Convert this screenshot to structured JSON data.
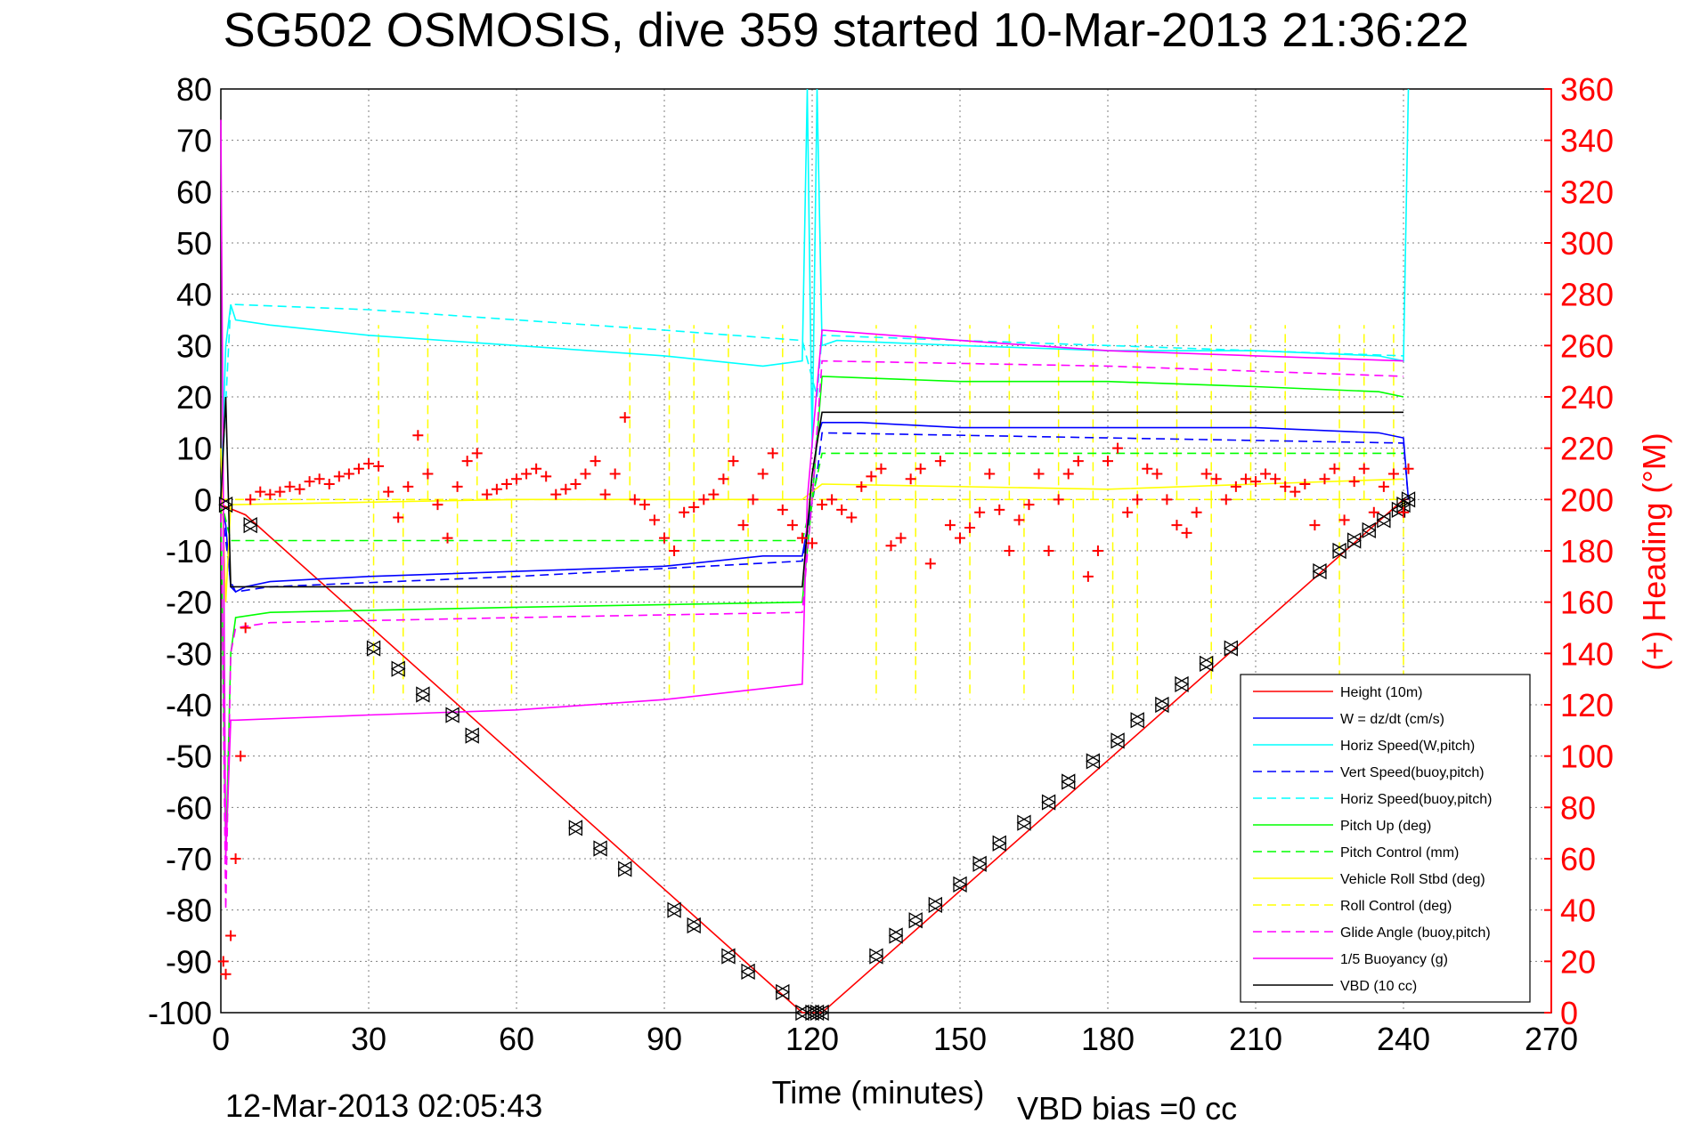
{
  "chart_data": {
    "type": "line",
    "title": "SG502 OSMOSIS, dive 359 started 10-Mar-2013 21:36:22",
    "xlabel": "Time (minutes)",
    "ylabel_right": "(+) Heading (°M)",
    "footer_left": "12-Mar-2013 02:05:43",
    "footer_right": "VBD bias =0 cc",
    "xlim": [
      0,
      270
    ],
    "ylim": [
      -100,
      80
    ],
    "ylim_right": [
      0,
      360
    ],
    "x_ticks": [
      "0",
      "30",
      "60",
      "90",
      "120",
      "150",
      "180",
      "210",
      "240",
      "270"
    ],
    "y_ticks": [
      "80",
      "70",
      "60",
      "50",
      "40",
      "30",
      "20",
      "10",
      "0",
      "-10",
      "-20",
      "-30",
      "-40",
      "-50",
      "-60",
      "-70",
      "-80",
      "-90",
      "-100"
    ],
    "y_ticks_right": [
      "360",
      "340",
      "320",
      "300",
      "280",
      "260",
      "240",
      "220",
      "200",
      "180",
      "160",
      "140",
      "120",
      "100",
      "80",
      "60",
      "40",
      "20",
      "0"
    ],
    "grid": true,
    "legend_position": "bottom-right",
    "series": [
      {
        "name": "Height (10m)",
        "color": "#ff0000",
        "dash": "solid",
        "x": [
          0,
          5,
          118,
          120,
          122,
          240,
          241
        ],
        "y": [
          -1,
          -3,
          -100,
          -100,
          -100,
          0,
          0
        ]
      },
      {
        "name": "W = dz/dt (cm/s)",
        "color": "#0000ff",
        "dash": "solid",
        "x": [
          0,
          1,
          2,
          3,
          5,
          10,
          30,
          60,
          90,
          110,
          118,
          120,
          121,
          122,
          130,
          150,
          180,
          210,
          235,
          240,
          241
        ],
        "y": [
          0,
          -5,
          -17,
          -18,
          -17,
          -16,
          -15,
          -14,
          -13,
          -11,
          -11,
          0,
          12,
          15,
          15,
          14,
          14,
          14,
          13,
          12,
          0
        ]
      },
      {
        "name": "Horiz Speed(W,pitch)",
        "color": "#00ffff",
        "dash": "solid",
        "x": [
          0,
          1,
          2,
          3,
          10,
          30,
          60,
          90,
          110,
          118,
          119,
          120,
          121,
          122,
          125,
          150,
          180,
          210,
          235,
          240,
          241
        ],
        "y": [
          0,
          30,
          38,
          35,
          34,
          32,
          30,
          28,
          26,
          27,
          80,
          10,
          80,
          30,
          31,
          30,
          29,
          29,
          28,
          27,
          80
        ]
      },
      {
        "name": "Vert Speed(buoy,pitch)",
        "color": "#0000ff",
        "dash": "dashed",
        "x": [
          0,
          2,
          3,
          10,
          60,
          118,
          121,
          122,
          180,
          240,
          241
        ],
        "y": [
          0,
          -16,
          -18,
          -17,
          -15,
          -12,
          5,
          13,
          12,
          11,
          0
        ]
      },
      {
        "name": "Horiz Speed(buoy,pitch)",
        "color": "#00ffff",
        "dash": "dashed",
        "x": [
          0,
          2,
          3,
          30,
          60,
          90,
          118,
          121,
          122,
          150,
          180,
          210,
          240
        ],
        "y": [
          0,
          38,
          38,
          37,
          35,
          33,
          31,
          20,
          32,
          31,
          30,
          29,
          28
        ]
      },
      {
        "name": "Pitch Up (deg)",
        "color": "#00ff00",
        "dash": "solid",
        "x": [
          0,
          1,
          2,
          3,
          10,
          60,
          118,
          120,
          122,
          150,
          180,
          210,
          235,
          240
        ],
        "y": [
          0,
          -70,
          -30,
          -23,
          -22,
          -21,
          -20,
          0,
          24,
          23,
          23,
          22,
          21,
          20
        ]
      },
      {
        "name": "Pitch Control (mm)",
        "color": "#00ff00",
        "dash": "dashed",
        "x": [
          0,
          2,
          3,
          118,
          120,
          122,
          240
        ],
        "y": [
          0,
          -8,
          -8,
          -8,
          0,
          9,
          9
        ]
      },
      {
        "name": "Vehicle Roll Stbd (deg)",
        "color": "#ffff00",
        "dash": "solid",
        "x": [
          0,
          1,
          2,
          3,
          60,
          118,
          122,
          180,
          240
        ],
        "y": [
          10,
          -20,
          -1,
          -1,
          0,
          0,
          3,
          2,
          4
        ]
      },
      {
        "name": "Roll Control (deg)",
        "color": "#ffff00",
        "dash": "dashed",
        "x": [
          0,
          2,
          3,
          118,
          122,
          240
        ],
        "y": [
          0,
          0,
          0,
          0,
          0,
          0
        ]
      },
      {
        "name": "Glide Angle (buoy,pitch)",
        "color": "#ff00ff",
        "dash": "dashed",
        "x": [
          0,
          1,
          2,
          3,
          10,
          60,
          118,
          120,
          122,
          180,
          240
        ],
        "y": [
          0,
          -80,
          -30,
          -25,
          -24,
          -23,
          -22,
          0,
          27,
          26,
          24
        ]
      },
      {
        "name": "1/5 Buoyancy (g)",
        "color": "#ff00ff",
        "dash": "solid",
        "x": [
          0,
          1,
          2,
          3,
          30,
          60,
          90,
          118,
          119,
          122,
          150,
          180,
          210,
          240
        ],
        "y": [
          74,
          -70,
          -43,
          -43,
          -42,
          -41,
          -39,
          -36,
          0,
          33,
          31,
          29,
          28,
          27
        ]
      },
      {
        "name": "VBD (10 cc)",
        "color": "#000000",
        "dash": "solid",
        "x": [
          0,
          1,
          2,
          3,
          60,
          118,
          120,
          122,
          240
        ],
        "y": [
          0,
          20,
          -17,
          -17,
          -17,
          -17,
          5,
          17,
          17
        ]
      }
    ],
    "heading_series": {
      "color": "#ff0000",
      "marker": "+",
      "axis": "right",
      "x": [
        0.5,
        1,
        2,
        3,
        4,
        5,
        6,
        8,
        10,
        12,
        14,
        16,
        18,
        20,
        22,
        24,
        26,
        28,
        30,
        32,
        34,
        36,
        38,
        40,
        42,
        44,
        46,
        48,
        50,
        52,
        54,
        56,
        58,
        60,
        62,
        64,
        66,
        68,
        70,
        72,
        74,
        76,
        78,
        80,
        82,
        84,
        86,
        88,
        90,
        92,
        94,
        96,
        98,
        100,
        102,
        104,
        106,
        108,
        110,
        112,
        114,
        116,
        118,
        120,
        122,
        124,
        126,
        128,
        130,
        132,
        134,
        136,
        138,
        140,
        142,
        144,
        146,
        148,
        150,
        152,
        154,
        156,
        158,
        160,
        162,
        164,
        166,
        168,
        170,
        172,
        174,
        176,
        178,
        180,
        182,
        184,
        186,
        188,
        190,
        192,
        194,
        196,
        198,
        200,
        202,
        204,
        206,
        208,
        210,
        212,
        214,
        216,
        218,
        220,
        222,
        224,
        226,
        228,
        230,
        232,
        234,
        236,
        238,
        240,
        241
      ],
      "y": [
        20,
        15,
        30,
        60,
        100,
        150,
        200,
        203,
        202,
        203,
        205,
        204,
        207,
        208,
        206,
        209,
        210,
        212,
        214,
        213,
        203,
        193,
        205,
        225,
        210,
        198,
        185,
        205,
        215,
        218,
        202,
        204,
        206,
        208,
        210,
        212,
        209,
        202,
        204,
        206,
        210,
        215,
        202,
        210,
        232,
        200,
        198,
        192,
        185,
        180,
        195,
        197,
        200,
        202,
        208,
        215,
        190,
        200,
        210,
        218,
        196,
        190,
        185,
        183,
        198,
        200,
        196,
        193,
        205,
        209,
        212,
        182,
        185,
        208,
        212,
        175,
        215,
        190,
        185,
        189,
        195,
        210,
        196,
        180,
        192,
        198,
        210,
        180,
        200,
        210,
        215,
        170,
        180,
        215,
        220,
        195,
        200,
        212,
        210,
        200,
        190,
        187,
        195,
        210,
        208,
        200,
        205,
        208,
        207,
        210,
        208,
        205,
        203,
        206,
        190,
        208,
        212,
        192,
        207,
        212,
        195,
        205,
        210,
        195,
        212
      ]
    },
    "depth_markers": {
      "color": "#000000",
      "marker": "triangles",
      "x": [
        1,
        6,
        31,
        36,
        41,
        47,
        51,
        72,
        77,
        82,
        92,
        96,
        103,
        107,
        114,
        118,
        120,
        121,
        122,
        133,
        137,
        141,
        145,
        150,
        154,
        158,
        163,
        168,
        172,
        177,
        182,
        186,
        191,
        195,
        200,
        205,
        223,
        227,
        230,
        233,
        236,
        239,
        240,
        241
      ],
      "y": [
        -1,
        -5,
        -29,
        -33,
        -38,
        -42,
        -46,
        -64,
        -68,
        -72,
        -80,
        -83,
        -89,
        -92,
        -96,
        -100,
        -100,
        -100,
        -100,
        -89,
        -85,
        -82,
        -79,
        -75,
        -71,
        -67,
        -63,
        -59,
        -55,
        -51,
        -47,
        -43,
        -40,
        -36,
        -32,
        -29,
        -14,
        -10,
        -8,
        -6,
        -4,
        -2,
        -1,
        0
      ]
    },
    "roll_spikes_down": [
      31,
      37,
      48,
      59,
      91,
      96,
      107,
      133,
      141,
      152,
      163,
      173,
      181,
      186,
      201,
      227,
      240
    ],
    "roll_spikes_up": [
      32,
      42,
      52,
      83,
      91,
      96,
      103,
      114,
      133,
      141,
      152,
      160,
      170,
      177,
      186,
      194,
      201,
      209,
      216,
      227,
      232,
      238
    ]
  }
}
